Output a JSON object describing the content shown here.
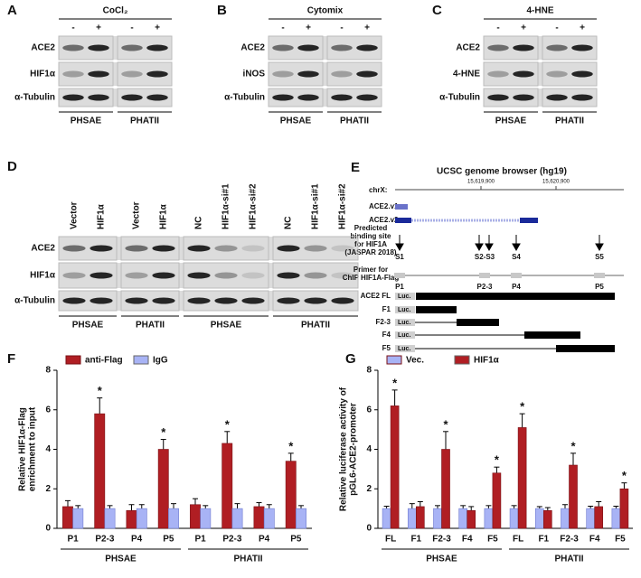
{
  "blots": [
    {
      "letter": "A",
      "title": "CoCl₂",
      "lanes": [
        [
          "-",
          "+"
        ],
        [
          "-",
          "+"
        ]
      ],
      "rows": [
        "ACE2",
        "HIF1α",
        "α-Tubulin"
      ],
      "groups": [
        "PHSAE",
        "PHATII"
      ]
    },
    {
      "letter": "B",
      "title": "Cytomix",
      "lanes": [
        [
          "-",
          "+"
        ],
        [
          "-",
          "+"
        ]
      ],
      "rows": [
        "ACE2",
        "iNOS",
        "α-Tubulin"
      ],
      "groups": [
        "PHSAE",
        "PHATII"
      ]
    },
    {
      "letter": "C",
      "title": "4-HNE",
      "lanes": [
        [
          "-",
          "+"
        ],
        [
          "-",
          "+"
        ]
      ],
      "rows": [
        "ACE2",
        "4-HNE",
        "α-Tubulin"
      ],
      "groups": [
        "PHSAE",
        "PHATII"
      ]
    },
    {
      "letter": "D",
      "lanes": [
        [
          "Vector",
          "HIF1α"
        ],
        [
          "Vector",
          "HIF1α"
        ],
        [
          "NC",
          "HIF1α-si#1",
          "HIF1α-si#2"
        ],
        [
          "NC",
          "HIF1α-si#1",
          "HIF1α-si#2"
        ]
      ],
      "rows": [
        "ACE2",
        "HIF1α",
        "α-Tubulin"
      ],
      "groups": [
        "PHSAE",
        "PHATII",
        "PHSAE",
        "PHATII"
      ]
    }
  ],
  "panel_e": {
    "letter": "E",
    "title": "UCSC genome browser (hg19)",
    "chrom": "chrX:",
    "coords": [
      "15,619,900",
      "15,620,900"
    ],
    "transcripts": [
      "ACE2.v1",
      "ACE2.v2"
    ],
    "binding_label": [
      "Predicted",
      "binding site",
      "for HIF1A",
      "(JASPAR 2018)"
    ],
    "sites": [
      "S1",
      "S2-S3",
      "S4",
      "S5"
    ],
    "primer_label": [
      "Primer for",
      "ChIP HIF1A-Flag"
    ],
    "primers": [
      "P1",
      "P2-3",
      "P4",
      "P5"
    ],
    "constructs": [
      "ACE2 FL",
      "F1",
      "F2-3",
      "F4",
      "F5"
    ],
    "luc": "Luc."
  },
  "chart_data": [
    {
      "type": "bar",
      "letter": "F",
      "y_label": [
        "Relative HIF1α-Flag",
        "enrichment to input"
      ],
      "categories": [
        "P1",
        "P2-3",
        "P4",
        "P5",
        "P1",
        "P2-3",
        "P4",
        "P5"
      ],
      "group_labels": [
        "PHSAE",
        "PHATII"
      ],
      "series": [
        {
          "name": "anti-Flag",
          "color": "#b01e23",
          "values": [
            1.1,
            5.8,
            0.9,
            4.0,
            1.2,
            4.3,
            1.1,
            3.4
          ],
          "errors": [
            0.3,
            0.8,
            0.3,
            0.5,
            0.3,
            0.6,
            0.2,
            0.4
          ],
          "markers": [
            null,
            "*",
            null,
            "*",
            null,
            "*",
            null,
            "*"
          ]
        },
        {
          "name": "IgG",
          "color": "#a8b3f5",
          "values": [
            1.0,
            1.0,
            1.0,
            1.0,
            1.0,
            1.0,
            1.0,
            1.0
          ],
          "errors": [
            0.15,
            0.15,
            0.2,
            0.25,
            0.15,
            0.25,
            0.2,
            0.15
          ]
        }
      ],
      "ylim": [
        0,
        8
      ],
      "yticks": [
        0,
        2,
        4,
        6,
        8
      ],
      "legend": "top-left"
    },
    {
      "type": "bar",
      "letter": "G",
      "y_label": [
        "Relative luciferase activity of",
        "pGL6-ACE2-promoter"
      ],
      "categories": [
        "FL",
        "F1",
        "F2-3",
        "F4",
        "F5",
        "FL",
        "F1",
        "F2-3",
        "F4",
        "F5"
      ],
      "group_labels": [
        "PHSAE",
        "PHATII"
      ],
      "series": [
        {
          "name": "Vec.",
          "color": "#a8b3f5",
          "values": [
            1.0,
            1.0,
            1.0,
            1.0,
            1.0,
            1.0,
            1.0,
            1.0,
            1.0,
            1.0
          ],
          "errors": [
            0.12,
            0.25,
            0.15,
            0.15,
            0.15,
            0.15,
            0.1,
            0.2,
            0.12,
            0.12
          ]
        },
        {
          "name": "HIF1α",
          "color": "#b01e23",
          "values": [
            6.2,
            1.1,
            4.0,
            0.9,
            2.8,
            5.1,
            0.9,
            3.2,
            1.1,
            2.0
          ],
          "errors": [
            0.8,
            0.25,
            0.9,
            0.2,
            0.3,
            0.7,
            0.15,
            0.6,
            0.25,
            0.3
          ],
          "markers": [
            "*",
            null,
            "*",
            null,
            "*",
            "*",
            null,
            "*",
            null,
            "*"
          ]
        }
      ],
      "ylim": [
        0,
        8
      ],
      "yticks": [
        0,
        2,
        4,
        6,
        8
      ],
      "legend": "top-left"
    }
  ]
}
